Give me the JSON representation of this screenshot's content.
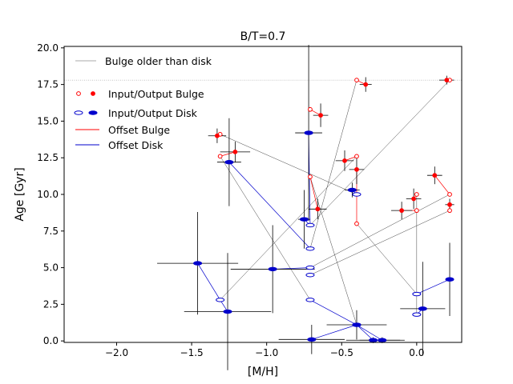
{
  "chart_data": {
    "type": "scatter",
    "title": "B/T=0.7",
    "xlabel": "[M/H]",
    "ylabel": "Age [Gyr]",
    "xlim": [
      -2.35,
      0.3
    ],
    "ylim": [
      -0.1,
      20.1
    ],
    "x_ticks": [
      -2.0,
      -1.5,
      -1.0,
      -0.5,
      0.0
    ],
    "x_tick_labels": [
      "−2.0",
      "−1.5",
      "−1.0",
      "−0.5",
      "0.0"
    ],
    "y_ticks": [
      0.0,
      2.5,
      5.0,
      7.5,
      10.0,
      12.5,
      15.0,
      17.5,
      20.0
    ],
    "y_tick_labels": [
      "0.0",
      "2.5",
      "5.0",
      "7.5",
      "10.0",
      "12.5",
      "15.0",
      "17.5",
      "20.0"
    ],
    "reference_line": {
      "y": 17.8,
      "label": "Bulge older than disk"
    },
    "legend": {
      "position": "upper-left",
      "entries": [
        "Input/Output Bulge",
        "Input/Output Disk",
        "Offset Bulge",
        "Offset Disk"
      ]
    },
    "colors": {
      "bulge": "#ff0000",
      "disk": "#0000cc",
      "pair_line": "#444444",
      "reference": "#aaaaaa"
    },
    "series": [
      {
        "name": "Bulge input",
        "values": [
          [
            -1.31,
            14.1
          ],
          [
            -1.31,
            12.6
          ],
          [
            -0.71,
            15.8
          ],
          [
            -0.71,
            11.2
          ],
          [
            -0.4,
            17.8
          ],
          [
            -0.4,
            12.6
          ],
          [
            -0.4,
            8.0
          ],
          [
            0.22,
            17.8
          ],
          [
            0.0,
            10.0
          ],
          [
            0.0,
            8.9
          ],
          [
            0.22,
            10.0
          ],
          [
            0.22,
            8.9
          ]
        ]
      },
      {
        "name": "Bulge output",
        "values": [
          [
            -1.33,
            14.0
          ],
          [
            -1.21,
            12.9
          ],
          [
            -0.64,
            15.4
          ],
          [
            -0.66,
            9.0
          ],
          [
            -0.34,
            17.5
          ],
          [
            -0.48,
            12.3
          ],
          [
            -0.4,
            11.7
          ],
          [
            0.2,
            17.8
          ],
          [
            -0.02,
            9.7
          ],
          [
            -0.1,
            8.9
          ],
          [
            0.12,
            11.3
          ],
          [
            0.22,
            9.3
          ]
        ],
        "x_err": [
          0.06,
          0.1,
          0.05,
          0.06,
          0.04,
          0.06,
          0.05,
          0.05,
          0.05,
          0.07,
          0.05,
          0.03
        ],
        "y_err": [
          0.5,
          0.7,
          0.8,
          0.7,
          0.5,
          0.7,
          1.0,
          0.3,
          0.7,
          0.6,
          0.6,
          0.4
        ]
      },
      {
        "name": "Disk input",
        "values": [
          [
            -1.31,
            2.8
          ],
          [
            -0.71,
            6.3
          ],
          [
            -0.71,
            5.0
          ],
          [
            -0.71,
            4.5
          ],
          [
            -0.71,
            7.9
          ],
          [
            -0.71,
            2.8
          ],
          [
            -0.4,
            10.0
          ],
          [
            -0.4,
            1.1
          ],
          [
            0.0,
            3.2
          ],
          [
            0.0,
            1.8
          ]
        ]
      },
      {
        "name": "Disk output",
        "values": [
          [
            -1.25,
            12.2
          ],
          [
            -1.46,
            5.3
          ],
          [
            -1.26,
            2.0
          ],
          [
            -0.96,
            4.9
          ],
          [
            -0.75,
            8.3
          ],
          [
            -0.72,
            14.2
          ],
          [
            -0.7,
            0.1
          ],
          [
            -0.43,
            10.3
          ],
          [
            -0.4,
            1.1
          ],
          [
            -0.29,
            0.05
          ],
          [
            -0.23,
            0.05
          ],
          [
            0.04,
            2.2
          ],
          [
            0.22,
            4.2
          ]
        ],
        "x_err": [
          0.08,
          0.27,
          0.29,
          0.28,
          0.04,
          0.09,
          0.22,
          0.05,
          0.2,
          0.18,
          0.15,
          0.15,
          0.02
        ],
        "y_err": [
          3.0,
          3.5,
          4.0,
          3.0,
          2.0,
          6.0,
          1.0,
          0.5,
          1.0,
          0.2,
          0.2,
          3.2,
          2.5
        ]
      }
    ],
    "pairs": [
      [
        [
          -1.31,
          2.8
        ],
        [
          -0.4,
          12.6
        ]
      ],
      [
        [
          -0.71,
          6.3
        ],
        [
          -0.4,
          17.8
        ]
      ],
      [
        [
          -0.71,
          5.0
        ],
        [
          0.22,
          10.0
        ]
      ],
      [
        [
          -0.71,
          4.5
        ],
        [
          0.22,
          8.9
        ]
      ],
      [
        [
          -0.71,
          7.9
        ],
        [
          0.22,
          17.8
        ]
      ],
      [
        [
          -0.71,
          2.8
        ],
        [
          -1.31,
          12.6
        ]
      ],
      [
        [
          -0.4,
          10.0
        ],
        [
          -1.31,
          14.1
        ]
      ],
      [
        [
          -0.4,
          1.1
        ],
        [
          -0.71,
          11.2
        ]
      ],
      [
        [
          0.0,
          3.2
        ],
        [
          -0.4,
          8.0
        ]
      ],
      [
        [
          0.0,
          1.8
        ],
        [
          0.0,
          10.0
        ]
      ]
    ],
    "bulge_offsets": [
      [
        [
          -1.31,
          14.1
        ],
        [
          -1.33,
          14.0
        ]
      ],
      [
        [
          -1.31,
          12.6
        ],
        [
          -1.21,
          12.9
        ]
      ],
      [
        [
          -0.71,
          15.8
        ],
        [
          -0.64,
          15.4
        ]
      ],
      [
        [
          -0.71,
          11.2
        ],
        [
          -0.66,
          9.0
        ]
      ],
      [
        [
          -0.4,
          17.8
        ],
        [
          -0.34,
          17.5
        ]
      ],
      [
        [
          -0.4,
          12.6
        ],
        [
          -0.48,
          12.3
        ]
      ],
      [
        [
          -0.4,
          8.0
        ],
        [
          -0.4,
          11.7
        ]
      ],
      [
        [
          0.22,
          17.8
        ],
        [
          0.2,
          17.8
        ]
      ],
      [
        [
          0.0,
          10.0
        ],
        [
          -0.02,
          9.7
        ]
      ],
      [
        [
          0.0,
          8.9
        ],
        [
          -0.1,
          8.9
        ]
      ],
      [
        [
          0.22,
          10.0
        ],
        [
          0.12,
          11.3
        ]
      ],
      [
        [
          0.22,
          8.9
        ],
        [
          0.22,
          9.3
        ]
      ]
    ],
    "disk_offsets": [
      [
        [
          -1.31,
          2.8
        ],
        [
          -1.46,
          5.3
        ]
      ],
      [
        [
          -1.31,
          2.8
        ],
        [
          -1.26,
          2.0
        ]
      ],
      [
        [
          -0.71,
          6.3
        ],
        [
          -1.25,
          12.2
        ]
      ],
      [
        [
          -0.71,
          5.0
        ],
        [
          -0.96,
          4.9
        ]
      ],
      [
        [
          -0.71,
          7.9
        ],
        [
          -0.75,
          8.3
        ]
      ],
      [
        [
          -0.71,
          7.9
        ],
        [
          -0.72,
          14.2
        ]
      ],
      [
        [
          -0.71,
          2.8
        ],
        [
          -0.4,
          1.1
        ]
      ],
      [
        [
          -0.4,
          1.1
        ],
        [
          -0.7,
          0.1
        ]
      ],
      [
        [
          -0.4,
          1.1
        ],
        [
          -0.29,
          0.05
        ]
      ],
      [
        [
          -0.4,
          1.1
        ],
        [
          -0.23,
          0.05
        ]
      ],
      [
        [
          -0.4,
          10.0
        ],
        [
          -0.43,
          10.3
        ]
      ],
      [
        [
          0.0,
          3.2
        ],
        [
          0.22,
          4.2
        ]
      ],
      [
        [
          0.0,
          1.8
        ],
        [
          0.04,
          2.2
        ]
      ]
    ]
  }
}
